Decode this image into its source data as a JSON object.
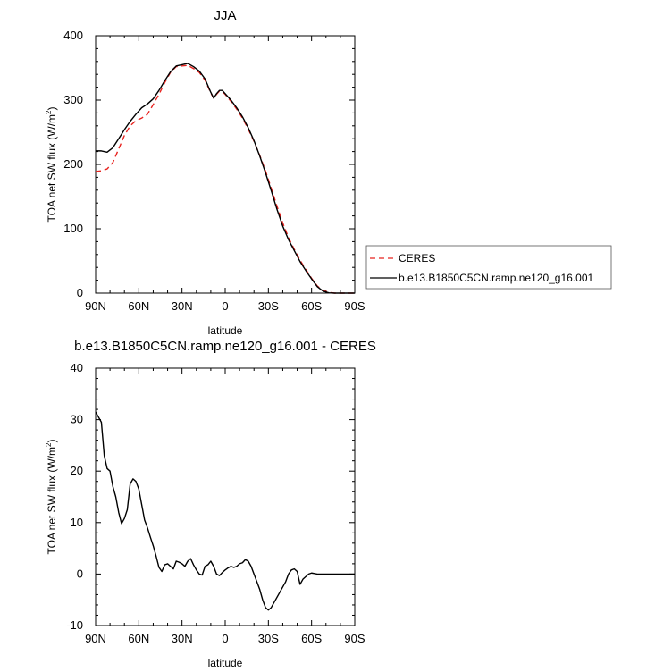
{
  "chart_data": [
    {
      "type": "line",
      "title": "JJA",
      "xlabel": "latitude",
      "ylabel": "TOA net SW flux (W/m",
      "ylabel_sup": "2",
      "ylabel_tail": ")",
      "xlim": [
        90,
        -90
      ],
      "ylim": [
        0,
        400
      ],
      "x_ticks": [
        90,
        60,
        30,
        0,
        -30,
        -60,
        -90
      ],
      "x_tick_labels": [
        "90N",
        "60N",
        "30N",
        "0",
        "30S",
        "60S",
        "90S"
      ],
      "y_ticks": [
        0,
        100,
        200,
        300,
        400
      ],
      "y_tick_labels": [
        "0",
        "100",
        "200",
        "300",
        "400"
      ],
      "legend": {
        "placement": "right",
        "entries": [
          "CERES",
          "b.e13.B1850C5CN.ramp.ne120_g16.001"
        ]
      },
      "series": [
        {
          "name": "CERES",
          "color": "#e8231f",
          "dash": "dashed",
          "x": [
            90,
            86,
            82,
            78,
            74,
            70,
            66,
            62,
            58,
            54,
            50,
            46,
            42,
            38,
            34,
            30,
            26,
            22,
            18,
            14,
            10,
            8,
            6,
            4,
            2,
            0,
            -4,
            -8,
            -12,
            -16,
            -20,
            -24,
            -28,
            -32,
            -36,
            -40,
            -44,
            -48,
            -52,
            -56,
            -60,
            -64,
            -68,
            -72,
            -76,
            -80,
            -84,
            -88,
            -90
          ],
          "y": [
            189,
            190,
            193,
            203,
            224,
            245,
            260,
            268,
            272,
            278,
            293,
            309,
            327,
            343,
            352,
            353,
            354,
            349,
            343,
            331,
            311,
            303,
            309,
            314,
            313,
            309,
            298,
            286,
            272,
            255,
            236,
            214,
            190,
            163,
            135,
            109,
            86,
            68,
            51,
            37,
            23,
            11,
            4,
            1,
            0,
            0,
            0,
            0,
            0
          ]
        },
        {
          "name": "b.e13.B1850C5CN.ramp.ne120_g16.001",
          "color": "#000000",
          "dash": "solid",
          "x": [
            90,
            86,
            82,
            78,
            74,
            70,
            66,
            62,
            58,
            54,
            50,
            46,
            42,
            38,
            34,
            30,
            26,
            22,
            18,
            14,
            10,
            8,
            6,
            4,
            2,
            0,
            -4,
            -8,
            -12,
            -16,
            -20,
            -24,
            -28,
            -32,
            -36,
            -40,
            -44,
            -48,
            -52,
            -56,
            -60,
            -64,
            -68,
            -72,
            -76,
            -80,
            -84,
            -88,
            -90
          ],
          "y": [
            221,
            221,
            219,
            226,
            240,
            254,
            267,
            278,
            288,
            294,
            302,
            315,
            330,
            344,
            353,
            355,
            357,
            352,
            345,
            333,
            312,
            303,
            310,
            315,
            315,
            310,
            300,
            288,
            274,
            257,
            237,
            213,
            187,
            159,
            130,
            104,
            83,
            66,
            49,
            35,
            22,
            10,
            3,
            0.5,
            0,
            0,
            0,
            0,
            0
          ]
        }
      ]
    },
    {
      "type": "line",
      "title": "b.e13.B1850C5CN.ramp.ne120_g16.001 - CERES",
      "xlabel": "latitude",
      "ylabel": "TOA net SW flux (W/m",
      "ylabel_sup": "2",
      "ylabel_tail": ")",
      "xlim": [
        90,
        -90
      ],
      "ylim": [
        -10,
        40
      ],
      "x_ticks": [
        90,
        60,
        30,
        0,
        -30,
        -60,
        -90
      ],
      "x_tick_labels": [
        "90N",
        "60N",
        "30N",
        "0",
        "30S",
        "60S",
        "90S"
      ],
      "y_ticks": [
        -10,
        0,
        10,
        20,
        30,
        40
      ],
      "y_tick_labels": [
        "-10",
        "0",
        "10",
        "20",
        "30",
        "40"
      ],
      "series": [
        {
          "name": "",
          "color": "#000000",
          "dash": "solid",
          "x": [
            90,
            88,
            86,
            84,
            82,
            80,
            78,
            76,
            74,
            72,
            70,
            68,
            66,
            64,
            62,
            60,
            58,
            56,
            54,
            52,
            50,
            48,
            46,
            44,
            42,
            40,
            38,
            36,
            34,
            32,
            30,
            28,
            26,
            24,
            22,
            20,
            18,
            16,
            14,
            12,
            10,
            8,
            6,
            4,
            2,
            0,
            -2,
            -4,
            -6,
            -8,
            -10,
            -12,
            -14,
            -16,
            -18,
            -20,
            -22,
            -24,
            -26,
            -28,
            -30,
            -32,
            -34,
            -36,
            -38,
            -40,
            -42,
            -44,
            -46,
            -48,
            -50,
            -52,
            -54,
            -56,
            -58,
            -60,
            -62,
            -64,
            -66,
            -68,
            -70,
            -72,
            -74,
            -76,
            -78,
            -80,
            -82,
            -84,
            -86,
            -88,
            -90
          ],
          "y": [
            31.5,
            30.5,
            29.5,
            23,
            20.5,
            20,
            17,
            15,
            12,
            9.8,
            10.8,
            12.5,
            17.5,
            18.5,
            18,
            16.5,
            13.5,
            10.5,
            9,
            7.2,
            5.5,
            3.5,
            1.3,
            0.5,
            1.8,
            2,
            1.5,
            1,
            2.5,
            2.3,
            2,
            1.5,
            2.5,
            3,
            1.8,
            0.8,
            0,
            -0.2,
            1.5,
            1.8,
            2.5,
            1.5,
            0,
            -0.3,
            0.3,
            0.8,
            1.2,
            1.5,
            1.3,
            1.5,
            2,
            2.2,
            2.8,
            2.5,
            1.5,
            0,
            -1.5,
            -3,
            -5,
            -6.5,
            -7,
            -6.5,
            -5.5,
            -4.5,
            -3.5,
            -2.5,
            -1.5,
            0,
            0.8,
            1,
            0.5,
            -2,
            -1,
            -0.5,
            0,
            0.2,
            0.1,
            0,
            0,
            0,
            0,
            0,
            0,
            0,
            0,
            0,
            0,
            0,
            0,
            0,
            0
          ]
        }
      ]
    }
  ]
}
